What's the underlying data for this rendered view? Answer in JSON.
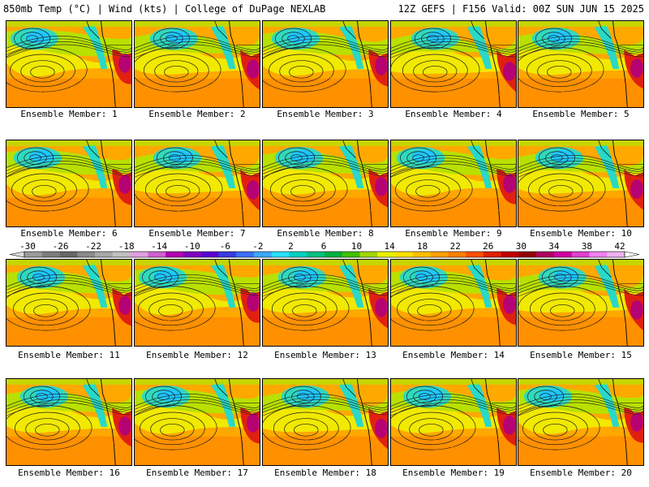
{
  "header": {
    "left": "850mb Temp (°C) | Wind (kts) | College of DuPage NEXLAB",
    "right": "12Z GEFS | F156 Valid: 00Z SUN JUN 15 2025"
  },
  "panels": [
    {
      "label": "Ensemble Member: 1"
    },
    {
      "label": "Ensemble Member: 2"
    },
    {
      "label": "Ensemble Member: 3"
    },
    {
      "label": "Ensemble Member: 4"
    },
    {
      "label": "Ensemble Member: 5"
    },
    {
      "label": "Ensemble Member: 6"
    },
    {
      "label": "Ensemble Member: 7"
    },
    {
      "label": "Ensemble Member: 8"
    },
    {
      "label": "Ensemble Member: 9"
    },
    {
      "label": "Ensemble Member: 10"
    },
    {
      "label": "Ensemble Member: 11"
    },
    {
      "label": "Ensemble Member: 12"
    },
    {
      "label": "Ensemble Member: 13"
    },
    {
      "label": "Ensemble Member: 14"
    },
    {
      "label": "Ensemble Member: 15"
    },
    {
      "label": "Ensemble Member: 16"
    },
    {
      "label": "Ensemble Member: 17"
    },
    {
      "label": "Ensemble Member: 18"
    },
    {
      "label": "Ensemble Member: 19"
    },
    {
      "label": "Ensemble Member: 20"
    }
  ],
  "colorbar": {
    "ticks": [
      "-30",
      "-26",
      "-22",
      "-18",
      "-14",
      "-10",
      "-6",
      "-2",
      "2",
      "6",
      "10",
      "14",
      "18",
      "22",
      "26",
      "30",
      "34",
      "38",
      "42"
    ],
    "colors": [
      "#9a9a9a",
      "#7d7d7d",
      "#676767",
      "#8a8a8a",
      "#a8a8a8",
      "#c0c0c0",
      "#e0a0e0",
      "#d060d0",
      "#b000b0",
      "#8000c0",
      "#5a00d0",
      "#3a3ae0",
      "#3a70ff",
      "#3aa8ff",
      "#28e0ff",
      "#00d0c0",
      "#00c080",
      "#00b040",
      "#40c000",
      "#a0d800",
      "#e8f000",
      "#ffe000",
      "#ffc000",
      "#ffa000",
      "#ff8000",
      "#ff5000",
      "#e02000",
      "#c00000",
      "#900000",
      "#b00060",
      "#d000a0",
      "#e040d0",
      "#f080f0",
      "#f0b0f0"
    ]
  },
  "map_colors": {
    "cold": "#1ec8ff",
    "cool": "#28d8c8",
    "mild": "#b8e000",
    "yellow": "#f0f000",
    "warm": "#ffb000",
    "warmer": "#ff9000",
    "hot": "#e02010",
    "very_hot": "#b00080",
    "ocean_base": "#ffa800"
  }
}
